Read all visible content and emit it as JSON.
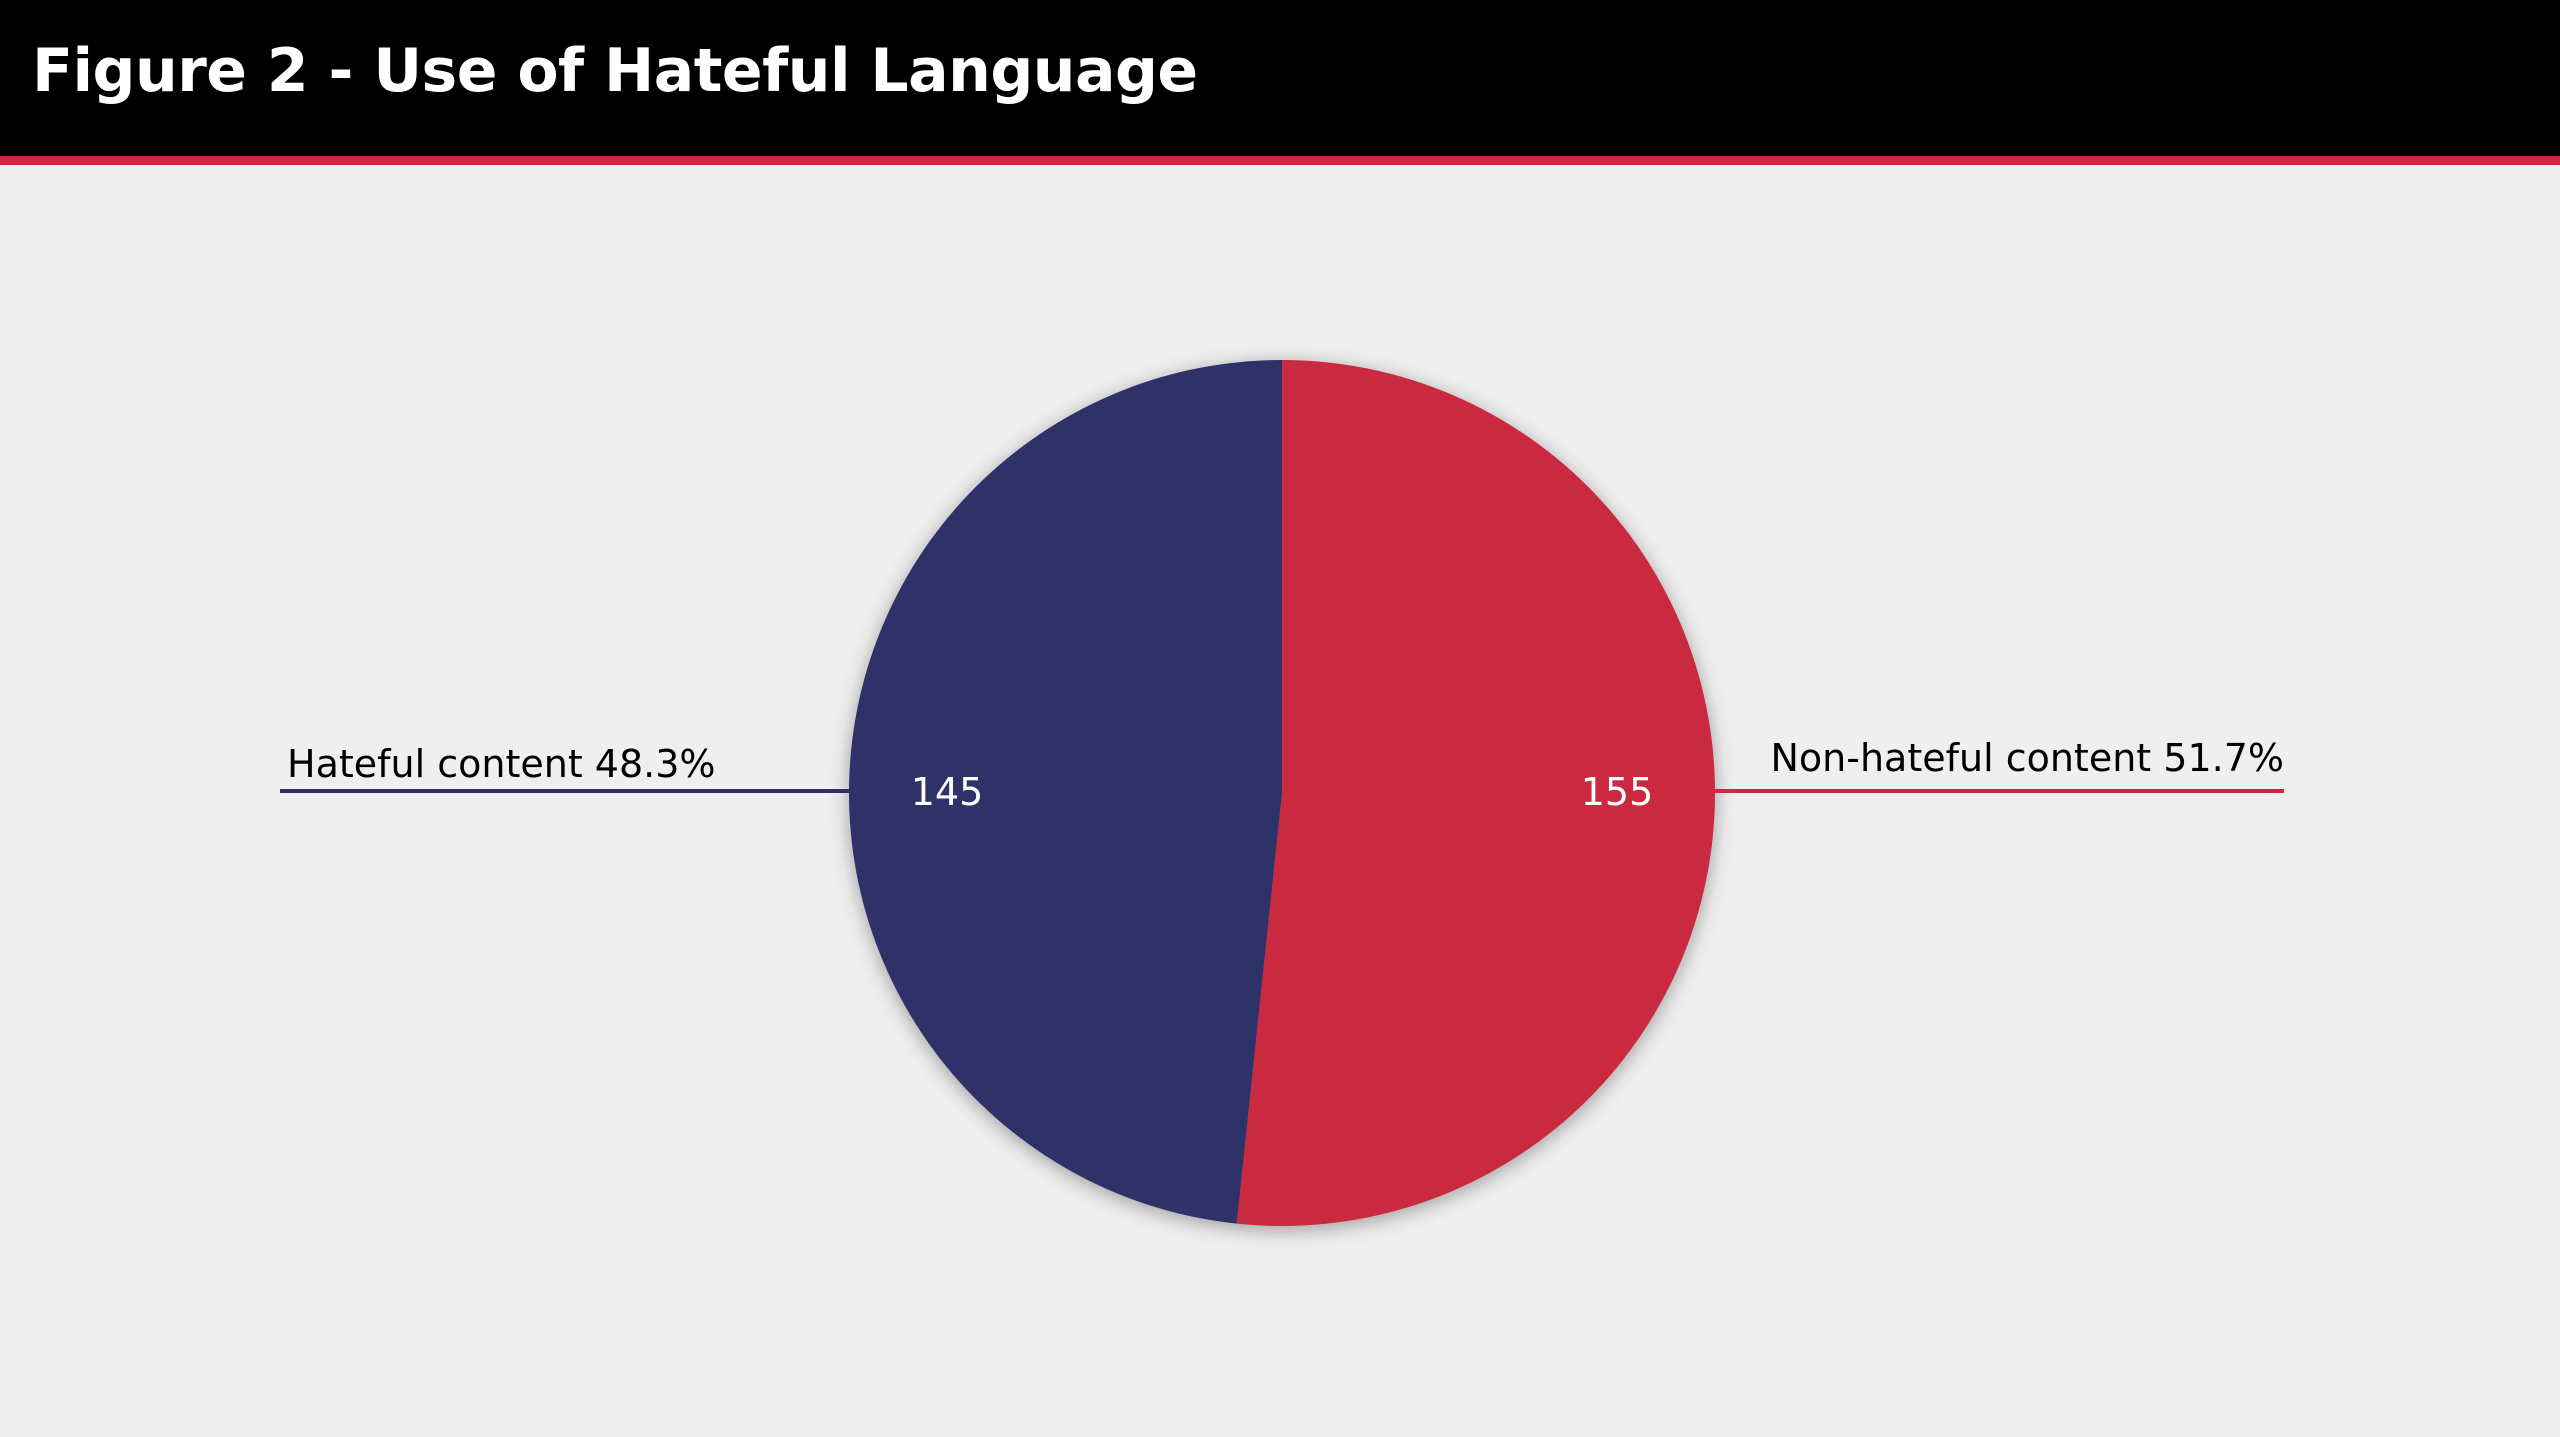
{
  "header": {
    "title": "Figure 2 - Use of Hateful Language"
  },
  "colors": {
    "header_bg": "#000000",
    "accent_rule": "#c92a40",
    "background": "#efefef",
    "hateful": "#2d3068",
    "non_hateful": "#c92a40"
  },
  "chart_data": {
    "type": "pie",
    "title": "Figure 2 - Use of Hateful Language",
    "slices": [
      {
        "name": "Non-hateful content",
        "value": 155,
        "percent_label": "51.7%",
        "value_label": "155",
        "callout": "Non-hateful content 51.7%",
        "color": "#c92a40"
      },
      {
        "name": "Hateful content",
        "value": 145,
        "percent_label": "48.3%",
        "value_label": "145",
        "callout": "Hateful content 48.3%",
        "color": "#2d3068"
      }
    ],
    "start": "12 o'clock",
    "direction": "clockwise",
    "legend": "none"
  }
}
